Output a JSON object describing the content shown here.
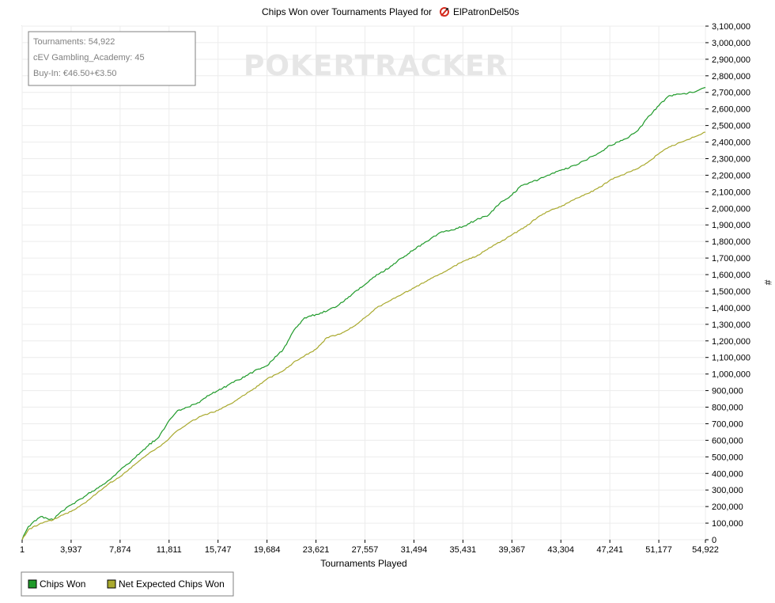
{
  "chart_data": {
    "type": "line",
    "title": "Chips Won over Tournaments Played for",
    "player": "ElPatronDel50s",
    "xlabel": "Tournaments Played",
    "ylabel": "#",
    "xlim": [
      1,
      54922
    ],
    "ylim": [
      0,
      3100000
    ],
    "x_ticks": [
      "1",
      "3,937",
      "7,874",
      "11,811",
      "15,747",
      "19,684",
      "23,621",
      "27,557",
      "31,494",
      "35,431",
      "39,367",
      "43,304",
      "47,241",
      "51,177",
      "54,922"
    ],
    "x_tick_values": [
      1,
      3937,
      7874,
      11811,
      15747,
      19684,
      23621,
      27557,
      31494,
      35431,
      39367,
      43304,
      47241,
      51177,
      54922
    ],
    "y_ticks": [
      "0",
      "100,000",
      "200,000",
      "300,000",
      "400,000",
      "500,000",
      "600,000",
      "700,000",
      "800,000",
      "900,000",
      "1,000,000",
      "1,100,000",
      "1,200,000",
      "1,300,000",
      "1,400,000",
      "1,500,000",
      "1,600,000",
      "1,700,000",
      "1,800,000",
      "1,900,000",
      "2,000,000",
      "2,100,000",
      "2,200,000",
      "2,300,000",
      "2,400,000",
      "2,500,000",
      "2,600,000",
      "2,700,000",
      "2,800,000",
      "2,900,000",
      "3,000,000",
      "3,100,000"
    ],
    "y_tick_values": [
      0,
      100000,
      200000,
      300000,
      400000,
      500000,
      600000,
      700000,
      800000,
      900000,
      1000000,
      1100000,
      1200000,
      1300000,
      1400000,
      1500000,
      1600000,
      1700000,
      1800000,
      1900000,
      2000000,
      2100000,
      2200000,
      2300000,
      2400000,
      2500000,
      2600000,
      2700000,
      2800000,
      2900000,
      3000000,
      3100000
    ],
    "grid": true,
    "legend_position": "bottom-left",
    "series": [
      {
        "name": "Chips Won",
        "color": "#1f9a2a",
        "x": [
          1,
          500,
          1500,
          2500,
          3000,
          3937,
          5000,
          6000,
          7000,
          7874,
          9000,
          10000,
          11000,
          11811,
          12500,
          13000,
          14000,
          15000,
          15747,
          17000,
          18000,
          19000,
          19684,
          21000,
          22000,
          22700,
          23621,
          24500,
          25500,
          26500,
          27557,
          28500,
          29500,
          30500,
          31494,
          32500,
          33500,
          34500,
          35431,
          36500,
          37500,
          38500,
          39367,
          40000,
          41000,
          42000,
          43304,
          44500,
          45500,
          46500,
          47241,
          48500,
          49500,
          50200,
          51177,
          52000,
          53000,
          54000,
          54922
        ],
        "y": [
          0,
          80000,
          140000,
          120000,
          160000,
          210000,
          260000,
          310000,
          360000,
          420000,
          490000,
          560000,
          620000,
          720000,
          780000,
          790000,
          820000,
          870000,
          900000,
          950000,
          990000,
          1030000,
          1050000,
          1150000,
          1280000,
          1340000,
          1360000,
          1380000,
          1420000,
          1480000,
          1540000,
          1600000,
          1640000,
          1700000,
          1750000,
          1800000,
          1850000,
          1870000,
          1890000,
          1930000,
          1960000,
          2040000,
          2080000,
          2130000,
          2160000,
          2190000,
          2230000,
          2260000,
          2300000,
          2340000,
          2380000,
          2420000,
          2470000,
          2540000,
          2620000,
          2680000,
          2690000,
          2700000,
          2730000
        ]
      },
      {
        "name": "Net Expected Chips Won",
        "color": "#a9a92e",
        "x": [
          1,
          500,
          1500,
          2500,
          3000,
          3937,
          5000,
          6000,
          7000,
          7874,
          9000,
          10000,
          11000,
          11811,
          12500,
          13500,
          14500,
          15747,
          17000,
          18000,
          19000,
          19684,
          21000,
          22000,
          23621,
          24500,
          25500,
          26500,
          27557,
          28500,
          29500,
          30500,
          31494,
          32500,
          33500,
          34500,
          35431,
          36500,
          37500,
          38500,
          39367,
          40500,
          41500,
          42500,
          43304,
          44500,
          45500,
          46500,
          47241,
          48500,
          49500,
          50500,
          51177,
          52000,
          53000,
          54000,
          54922
        ],
        "y": [
          0,
          60000,
          100000,
          120000,
          140000,
          170000,
          220000,
          280000,
          340000,
          380000,
          450000,
          510000,
          560000,
          610000,
          660000,
          710000,
          750000,
          780000,
          830000,
          880000,
          930000,
          970000,
          1020000,
          1080000,
          1150000,
          1220000,
          1240000,
          1280000,
          1340000,
          1400000,
          1440000,
          1480000,
          1520000,
          1560000,
          1600000,
          1640000,
          1680000,
          1710000,
          1760000,
          1800000,
          1840000,
          1890000,
          1950000,
          1990000,
          2010000,
          2060000,
          2090000,
          2130000,
          2170000,
          2210000,
          2240000,
          2290000,
          2330000,
          2370000,
          2400000,
          2430000,
          2460000
        ]
      }
    ]
  },
  "info_box": {
    "tournaments": "Tournaments: 54,922",
    "cev": "cEV Gambling_Academy: 45",
    "buyin": "Buy-In: €46.50+€3.50"
  },
  "legend": {
    "chips_won": "Chips Won",
    "net_expected": "Net Expected Chips Won"
  },
  "icons": {
    "player_icon": "party-poker-icon"
  }
}
